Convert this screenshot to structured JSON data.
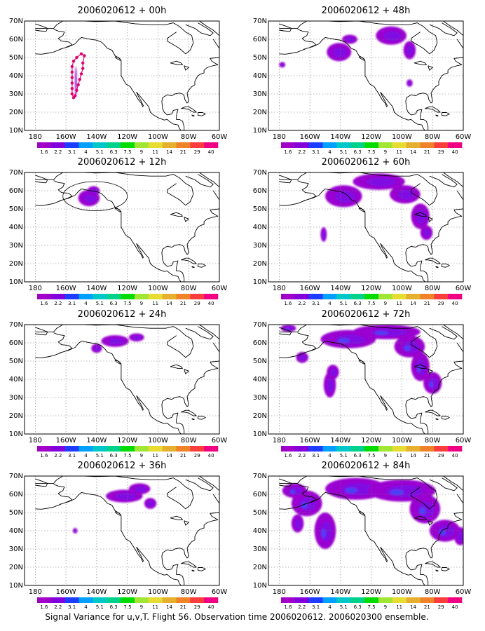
{
  "figure": {
    "caption": "Signal Variance for u,v,T. Flight 56. Observation time 2006020612. 2006020300 ensemble."
  },
  "axes": {
    "lat_labels": [
      "10N",
      "20N",
      "30N",
      "40N",
      "50N",
      "60N",
      "70N"
    ],
    "lon_labels": [
      "180",
      "160W",
      "140W",
      "120W",
      "100W",
      "80W",
      "60W"
    ]
  },
  "colorbar": {
    "levels": [
      "1.6",
      "2.2",
      "3.1",
      "4",
      "5.1",
      "6.3",
      "7.5",
      "9",
      "11",
      "14",
      "21",
      "29",
      "40"
    ],
    "colors": [
      "#a000c8",
      "#8200dc",
      "#1e3cff",
      "#00a0ff",
      "#00c8c8",
      "#00d28c",
      "#00dc00",
      "#a0e632",
      "#e6dc32",
      "#e6af2d",
      "#f08228",
      "#fa3c3c",
      "#f00082"
    ]
  },
  "panels": [
    {
      "title": "2006020612 + 00h",
      "lead_hours": 0,
      "blobs": [
        [
          -153.5,
          37,
          0.6,
          8
        ]
      ],
      "track": [
        [
          -155,
          28
        ],
        [
          -156,
          30
        ],
        [
          -156,
          33
        ],
        [
          -156,
          36
        ],
        [
          -156,
          39
        ],
        [
          -156,
          42
        ],
        [
          -156,
          45
        ],
        [
          -155,
          48
        ],
        [
          -153,
          50
        ],
        [
          -150,
          52
        ],
        [
          -148,
          51
        ],
        [
          -149,
          47
        ],
        [
          -149,
          44
        ],
        [
          -150,
          41
        ],
        [
          -151,
          38
        ],
        [
          -152,
          35
        ],
        [
          -153,
          32
        ],
        [
          -154,
          29
        ]
      ],
      "circle": null
    },
    {
      "title": "2006020612 + 12h",
      "lead_hours": 12,
      "blobs": [
        [
          -145,
          56,
          7,
          4.5
        ],
        [
          -142,
          60,
          4,
          2.5
        ]
      ],
      "track": [],
      "circle": [
        -141,
        57,
        21,
        8
      ]
    },
    {
      "title": "2006020612 + 24h",
      "lead_hours": 24,
      "blobs": [
        [
          -128,
          61,
          9,
          3.2
        ],
        [
          -140,
          57,
          3.5,
          2.5
        ],
        [
          -114,
          63,
          5,
          2.2
        ]
      ],
      "track": [],
      "circle": null
    },
    {
      "title": "2006020612 + 36h",
      "lead_hours": 36,
      "blobs": [
        [
          -122,
          59,
          12,
          3.5
        ],
        [
          -112,
          63,
          7,
          3
        ],
        [
          -105,
          55,
          4,
          3
        ],
        [
          -154,
          40,
          1.5,
          1.5
        ]
      ],
      "track": [],
      "circle": null
    },
    {
      "title": "2006020612 + 48h",
      "lead_hours": 48,
      "blobs": [
        [
          -141,
          53,
          8,
          5
        ],
        [
          -134,
          60,
          5,
          2.5
        ],
        [
          -107,
          62,
          10,
          5
        ],
        [
          -95,
          54,
          4,
          5
        ],
        [
          -95,
          36,
          2,
          2
        ],
        [
          -178,
          46,
          2,
          1.5
        ]
      ],
      "track": [],
      "circle": null
    },
    {
      "title": "2006020612 + 60h",
      "lead_hours": 60,
      "blobs": [
        [
          -138,
          57,
          12,
          6
        ],
        [
          -115,
          65,
          17,
          4.5
        ],
        [
          -98,
          58,
          10,
          5
        ],
        [
          -88,
          46,
          6,
          7
        ],
        [
          -84,
          37,
          4,
          4
        ],
        [
          -151,
          36,
          2,
          4
        ]
      ],
      "track": [],
      "circle": null
    },
    {
      "title": "2006020612 + 72h",
      "lead_hours": 72,
      "blobs": [
        [
          -135,
          62,
          18,
          5
        ],
        [
          -110,
          66,
          22,
          4
        ],
        [
          -95,
          58,
          10,
          6
        ],
        [
          -88,
          47,
          6,
          8
        ],
        [
          -80,
          38,
          6,
          6
        ],
        [
          -147,
          37,
          4,
          7
        ],
        [
          -145,
          44,
          4,
          4
        ],
        [
          -165,
          52,
          4,
          3
        ],
        [
          -174,
          68,
          5,
          2
        ]
      ],
      "track": [],
      "circle": null
    },
    {
      "title": "2006020612 + 84h",
      "lead_hours": 84,
      "blobs": [
        [
          -130,
          63,
          20,
          6
        ],
        [
          -100,
          62,
          22,
          6
        ],
        [
          -85,
          52,
          10,
          8
        ],
        [
          -72,
          40,
          10,
          6
        ],
        [
          -62,
          37,
          4,
          5
        ],
        [
          -150,
          40,
          7,
          10
        ],
        [
          -162,
          55,
          10,
          7
        ],
        [
          -168,
          44,
          4,
          5
        ],
        [
          -170,
          62,
          8,
          4
        ]
      ],
      "track": [],
      "circle": null
    }
  ]
}
